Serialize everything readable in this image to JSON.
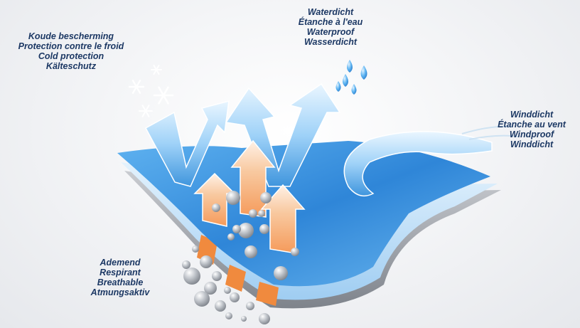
{
  "labels": {
    "cold": [
      "Koude bescherming",
      "Protection contre le froid",
      "Cold protection",
      "Kälteschutz"
    ],
    "water": [
      "Waterdicht",
      "Étanche à l'eau",
      "Waterproof",
      "Wasserdicht"
    ],
    "wind": [
      "Winddicht",
      "Étanche au vent",
      "Windproof",
      "Winddicht"
    ],
    "breath": [
      "Ademend",
      "Respirant",
      "Breathable",
      "Atmungsaktiv"
    ]
  },
  "icons": {
    "cold": "snowflake-icon",
    "water": "water-droplet-icon",
    "breath": "vapour-bubble-icon"
  },
  "colors": {
    "label_text": "#1c3864",
    "membrane_blue": "#2f86d8",
    "arrow_blue": "#8fc9f5",
    "warm_arrow": "#f3b07a",
    "pore_orange": "#f08a3e",
    "bubble_grey": "#9a9ea6"
  }
}
